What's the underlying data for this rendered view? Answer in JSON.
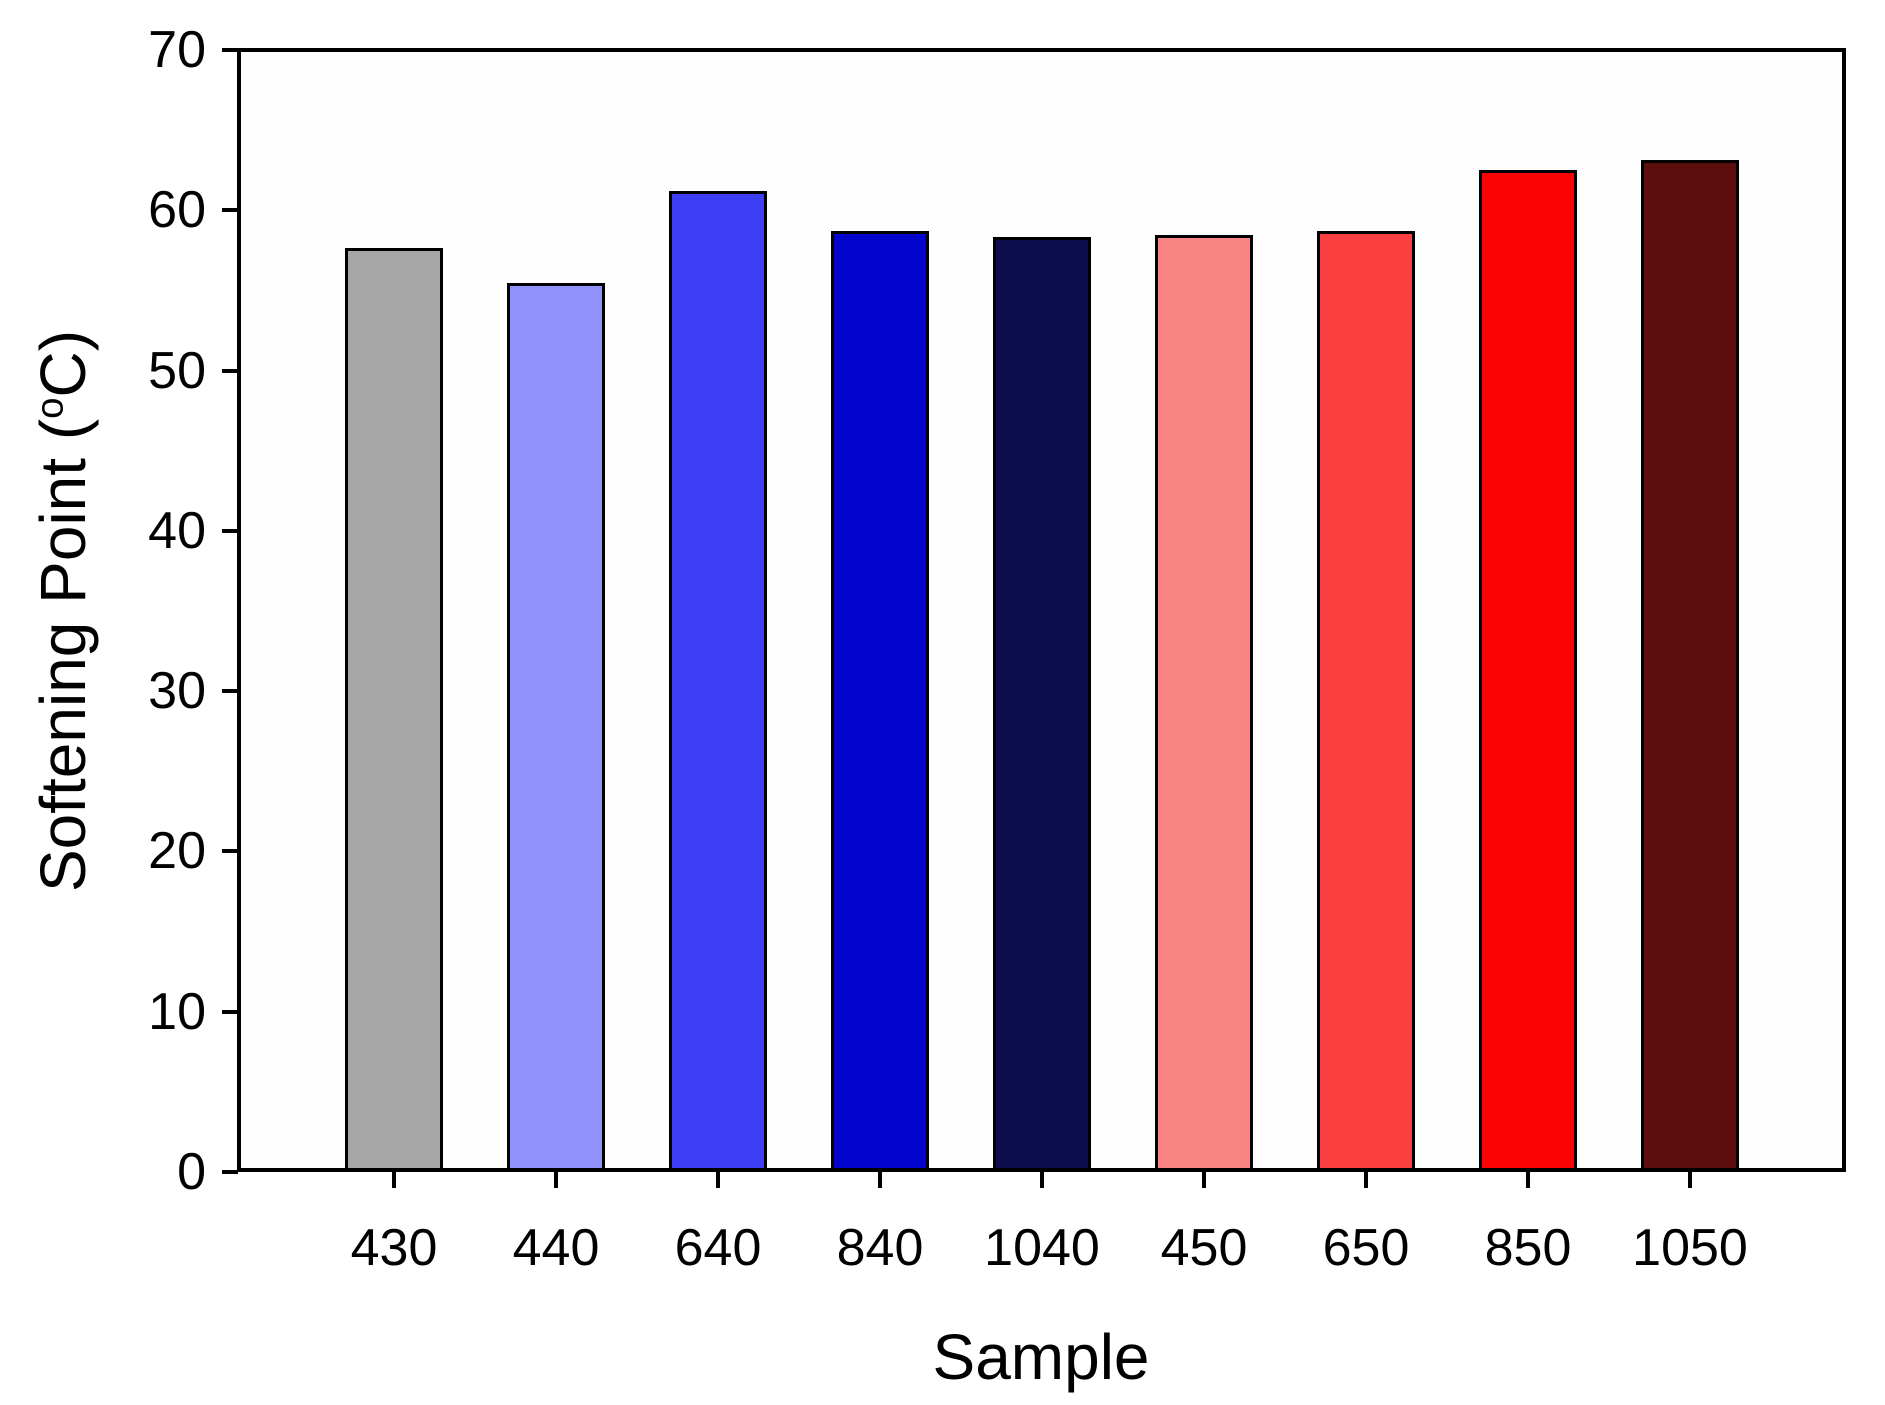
{
  "figure": {
    "background": "#FFFFFF",
    "plot_background": "#FEFEFE"
  },
  "chart_data": {
    "type": "bar",
    "title": "",
    "xlabel": "Sample",
    "ylabel": "Softening Point (°C)",
    "ylabel_parts": {
      "prefix": "Softening Point (",
      "superscript": "o",
      "suffix": "C)"
    },
    "categories": [
      "430",
      "440",
      "640",
      "840",
      "1040",
      "450",
      "650",
      "850",
      "1050"
    ],
    "values": [
      57.7,
      55.5,
      61.3,
      58.8,
      58.4,
      58.5,
      58.8,
      62.6,
      63.2
    ],
    "bar_colors": [
      "#A6A6A6",
      "#9191FA",
      "#3E3EF4",
      "#0404CF",
      "#0D0D4D",
      "#FA8383",
      "#FA4040",
      "#FC0303",
      "#5E0D0D"
    ],
    "bar_border_color": "#000000",
    "axis_color": "#000000",
    "tick_label_color": "#000000",
    "ylim": [
      0,
      70
    ],
    "yticks": [
      0,
      10,
      20,
      30,
      40,
      50,
      60,
      70
    ],
    "grid": false,
    "legend": "none"
  }
}
